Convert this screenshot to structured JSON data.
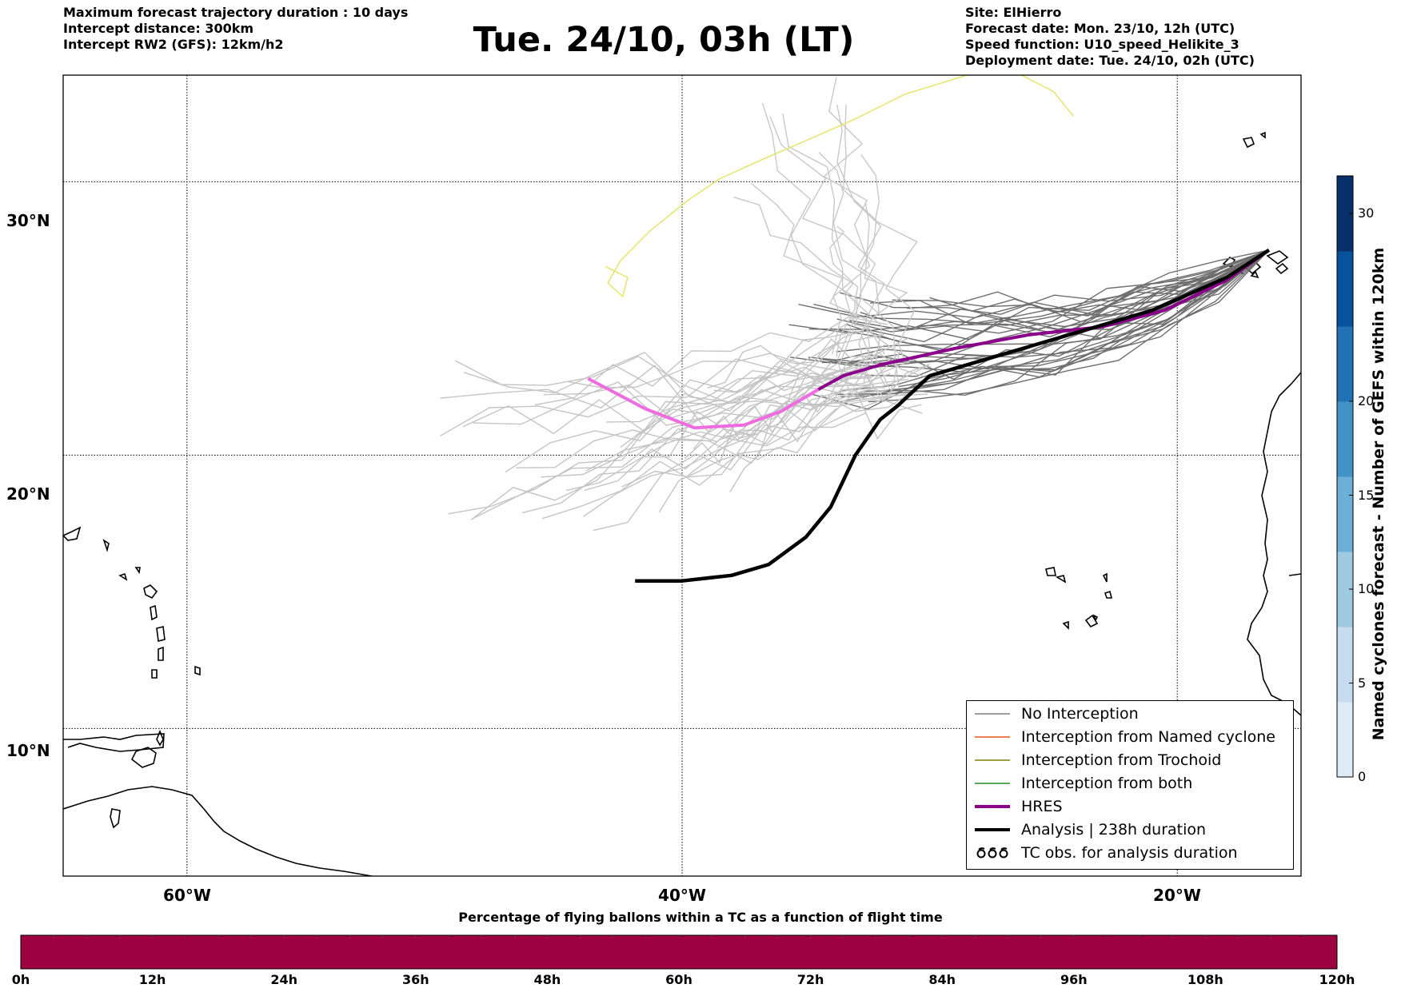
{
  "info_left": [
    "Maximum forecast trajectory duration : 10 days",
    "Intercept distance: 300km",
    "Intercept RW2 (GFS):  12km/h2"
  ],
  "title": "Tue. 24/10, 03h (LT)",
  "info_right": [
    "Site: ElHierro",
    "Forecast date: Mon. 23/10, 12h (UTC)",
    "Speed function: U10_speed_Helikite_3",
    "Deployment date: Tue. 24/10, 02h (UTC)"
  ],
  "lat_labels": [
    "30°N",
    "20°N",
    "10°N"
  ],
  "lon_labels": [
    "60°W",
    "40°W",
    "20°W"
  ],
  "extent": {
    "lon": [
      -65,
      -15
    ],
    "lat": [
      4.6,
      33.9
    ]
  },
  "legend": [
    {
      "label": "No Interception",
      "color": "#7f7f7f"
    },
    {
      "label": "Interception from Named cyclone",
      "color": "#e8541e"
    },
    {
      "label": "Interception from Trochoid",
      "color": "#808000"
    },
    {
      "label": "Interception from both",
      "color": "#228b22"
    },
    {
      "label": "HRES",
      "color": "#8b008b"
    },
    {
      "label": "Analysis | 238h duration",
      "color": "#000000"
    },
    {
      "label": "TC obs. for analysis duration",
      "color": "#000000"
    }
  ],
  "colorbar": {
    "label": "Named cyclones forecast - Number of GEFS within 120km",
    "ticks": [
      "0",
      "5",
      "10",
      "15",
      "20",
      "30"
    ],
    "tick_values": [
      0,
      5,
      10,
      15,
      20,
      30
    ],
    "max": 32,
    "colors": [
      "#deebf7",
      "#c6dbef",
      "#9ecae1",
      "#6baed6",
      "#4292c6",
      "#2171b5",
      "#08519c",
      "#08306b"
    ]
  },
  "flight_bar": {
    "label": "Percentage of flying ballons within a TC as a function of flight time",
    "ticks": [
      "0h",
      "12h",
      "24h",
      "36h",
      "48h",
      "60h",
      "72h",
      "84h",
      "96h",
      "108h",
      "120h"
    ],
    "color": "#9e0142"
  },
  "chart_data": {
    "type": "trajectory-map",
    "origin": {
      "lon": -16.3,
      "lat": 27.5
    },
    "analysis": [
      [
        -16.3,
        27.5
      ],
      [
        -18,
        26.5
      ],
      [
        -21,
        25.3
      ],
      [
        -24,
        24.5
      ],
      [
        -27,
        23.7
      ],
      [
        -30,
        22.9
      ],
      [
        -31.3,
        21.8
      ],
      [
        -32,
        21.3
      ],
      [
        -33,
        20
      ],
      [
        -34,
        18.1
      ],
      [
        -35,
        17
      ],
      [
        -36.5,
        16
      ],
      [
        -38,
        15.6
      ],
      [
        -40,
        15.4
      ],
      [
        -41.9,
        15.4
      ]
    ],
    "hres": [
      [
        -16.3,
        27.5
      ],
      [
        -18,
        26.4
      ],
      [
        -20.5,
        25.3
      ],
      [
        -23,
        24.7
      ],
      [
        -26,
        24.4
      ],
      [
        -29,
        23.9
      ],
      [
        -32,
        23.3
      ],
      [
        -33.5,
        22.9
      ],
      [
        -34.5,
        22.4
      ],
      [
        -36,
        21.6
      ],
      [
        -37.5,
        21.1
      ],
      [
        -39.5,
        21
      ],
      [
        -41.5,
        21.7
      ],
      [
        -43.8,
        22.8
      ]
    ],
    "hres_faded_from": [
      -34.5,
      22.4
    ],
    "named_cyclone_track": [
      [
        -24.2,
        32.4
      ],
      [
        -25,
        33.3
      ],
      [
        -26.5,
        34
      ],
      [
        -28.5,
        33.9
      ],
      [
        -31,
        33.2
      ],
      [
        -33,
        32.3
      ],
      [
        -35,
        31.5
      ],
      [
        -36.8,
        30.8
      ],
      [
        -38.5,
        30.1
      ],
      [
        -39.8,
        29.3
      ],
      [
        -41.3,
        28.2
      ],
      [
        -42.5,
        27.1
      ],
      [
        -43,
        26.3
      ],
      [
        -42.4,
        25.8
      ],
      [
        -42.2,
        26.5
      ],
      [
        -43.1,
        26.9
      ]
    ]
  }
}
